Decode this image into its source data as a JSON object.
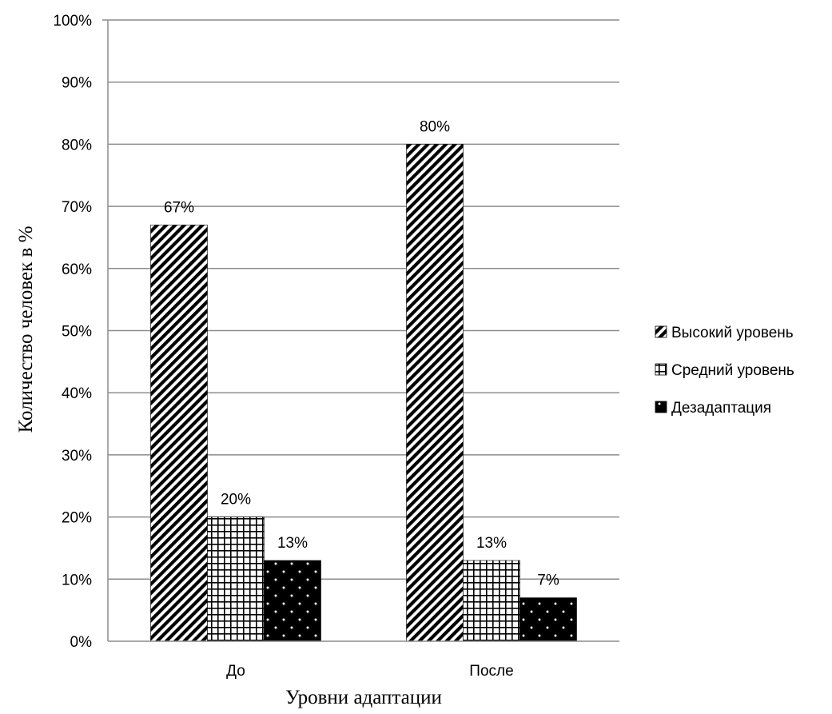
{
  "chart_data": {
    "type": "bar",
    "title": "",
    "xlabel": "Уровни адаптации",
    "ylabel": "Количество человек в %",
    "categories": [
      "До",
      "После"
    ],
    "ylim": [
      0,
      100
    ],
    "yticks": [
      0,
      10,
      20,
      30,
      40,
      50,
      60,
      70,
      80,
      90,
      100
    ],
    "y_tick_suffix": "%",
    "grid": true,
    "legend_position": "right",
    "series": [
      {
        "name": "Высокий уровень",
        "values": [
          67,
          80
        ],
        "value_labels": [
          "67%",
          "80%"
        ],
        "pattern": "diagonal-stripes"
      },
      {
        "name": "Средний уровень",
        "values": [
          20,
          13
        ],
        "value_labels": [
          "20%",
          "13%"
        ],
        "pattern": "grid"
      },
      {
        "name": "Дезадаптация",
        "values": [
          13,
          7
        ],
        "value_labels": [
          "13%",
          "7%"
        ],
        "pattern": "dotted-black"
      }
    ]
  }
}
